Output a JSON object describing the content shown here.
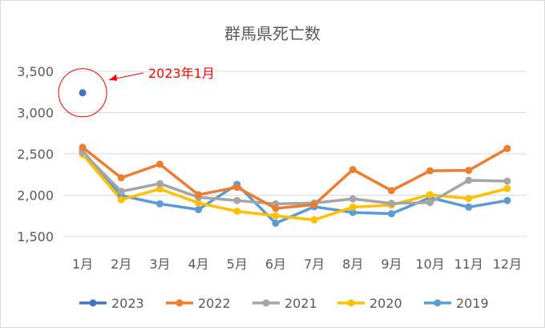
{
  "chart_data": {
    "type": "line",
    "title": "群馬県死亡数",
    "categories": [
      "1月",
      "2月",
      "3月",
      "4月",
      "5月",
      "6月",
      "7月",
      "8月",
      "9月",
      "10月",
      "11月",
      "12月"
    ],
    "ylim": [
      1500,
      3500
    ],
    "yticks": [
      1500,
      2000,
      2500,
      3000,
      3500
    ],
    "ytick_labels": [
      "1,500",
      "2,000",
      "2,500",
      "3,000",
      "3,500"
    ],
    "grid": true,
    "legend_position": "bottom",
    "annotation": {
      "text": "2023年1月",
      "color": "#ff0000",
      "target_series": "2023",
      "target_index": 0
    },
    "series": [
      {
        "name": "2023",
        "color": "#4472c4",
        "values": [
          3240,
          null,
          null,
          null,
          null,
          null,
          null,
          null,
          null,
          null,
          null,
          null
        ]
      },
      {
        "name": "2022",
        "color": "#ed7d31",
        "values": [
          2580,
          2210,
          2375,
          2005,
          2095,
          1840,
          1885,
          2310,
          2055,
          2295,
          2300,
          2565
        ]
      },
      {
        "name": "2021",
        "color": "#a5a5a5",
        "values": [
          2520,
          2045,
          2140,
          1975,
          1935,
          1895,
          1905,
          1955,
          1900,
          1910,
          2180,
          2170
        ]
      },
      {
        "name": "2020",
        "color": "#ffc000",
        "values": [
          2495,
          1945,
          2075,
          1905,
          1805,
          1750,
          1700,
          1855,
          1880,
          2005,
          1960,
          2080
        ]
      },
      {
        "name": "2019",
        "color": "#5b9bd5",
        "values": [
          2535,
          1995,
          1895,
          1825,
          2130,
          1660,
          1860,
          1790,
          1775,
          1970,
          1855,
          1935
        ]
      }
    ]
  }
}
